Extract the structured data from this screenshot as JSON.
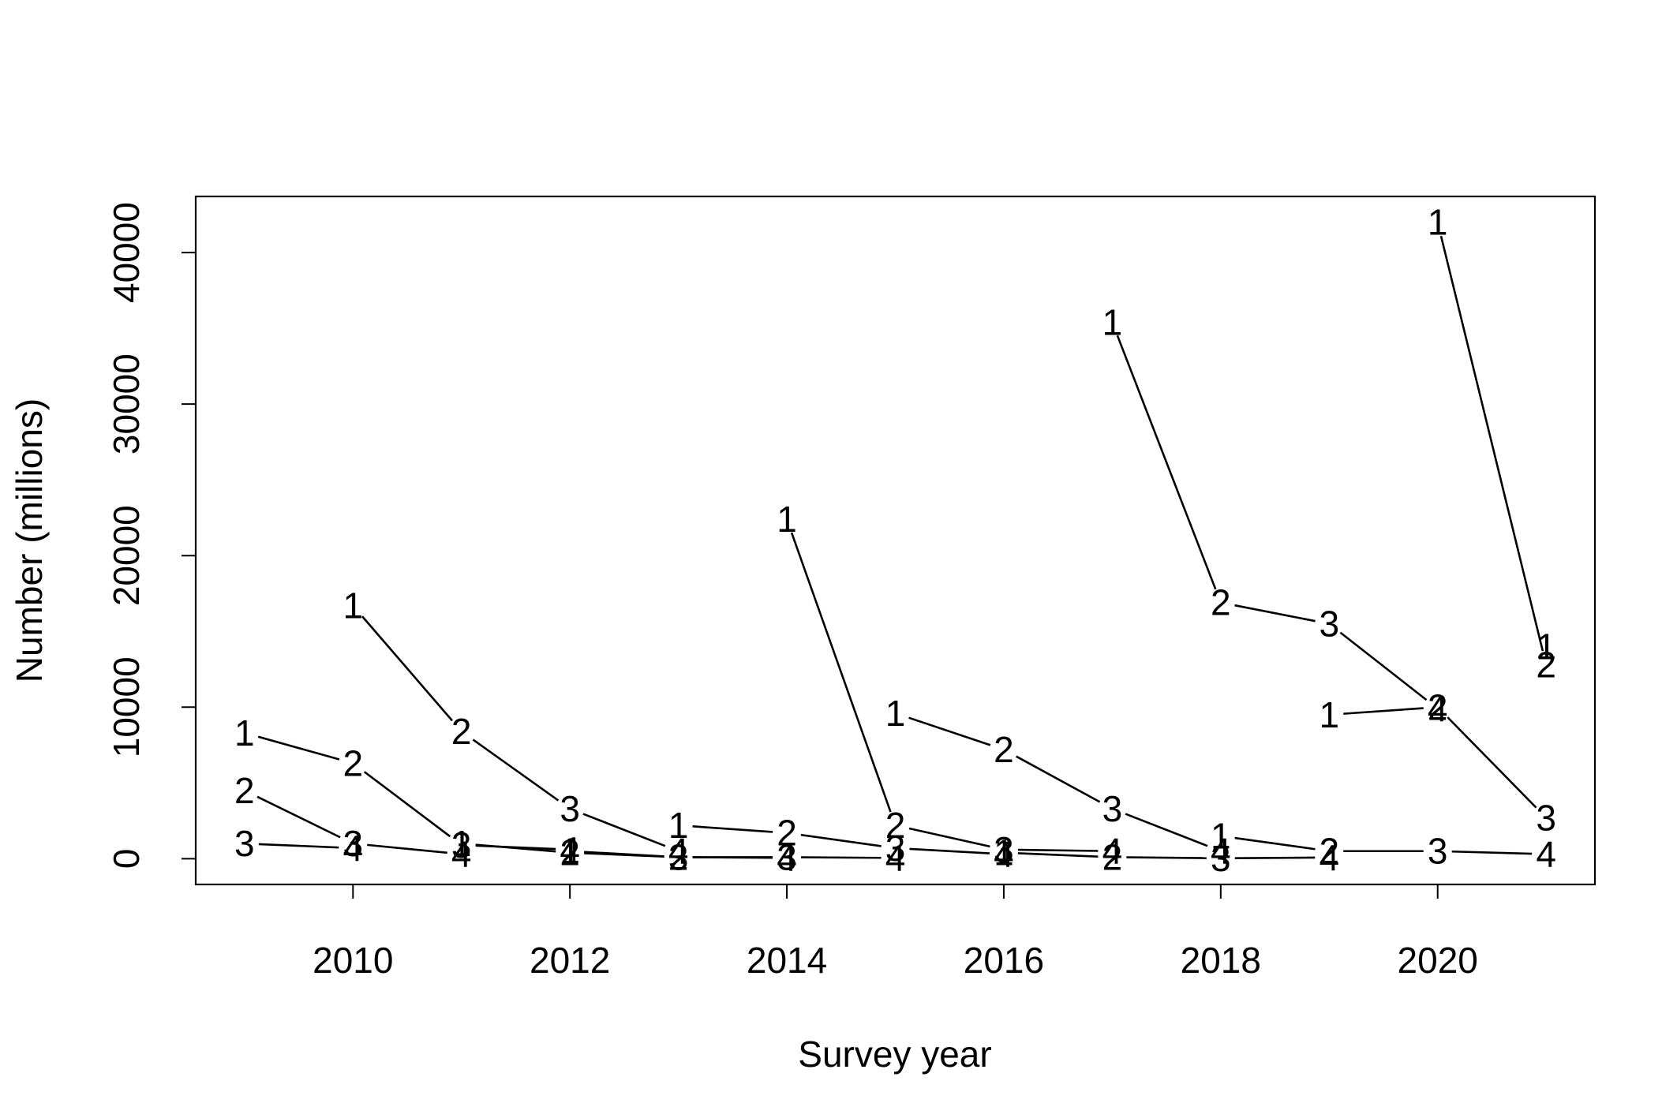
{
  "chart_data": {
    "type": "line",
    "xlabel": "Survey year",
    "ylabel": "Number (millions)",
    "xlim": [
      2008.55,
      2021.45
    ],
    "ylim": [
      -1700,
      43700
    ],
    "x_ticks": [
      2010,
      2012,
      2014,
      2016,
      2018,
      2020
    ],
    "y_ticks": [
      0,
      10000,
      20000,
      30000,
      40000
    ],
    "point_labels_are_ages": true,
    "series": [
      {
        "points": [
          [
            2009,
            8300,
            "1"
          ],
          [
            2010,
            6300,
            "2"
          ],
          [
            2011,
            900,
            "3"
          ],
          [
            2012,
            600,
            "4"
          ]
        ]
      },
      {
        "points": [
          [
            2009,
            4500,
            "2"
          ],
          [
            2010,
            1000,
            "3"
          ],
          [
            2011,
            300,
            "4"
          ]
        ]
      },
      {
        "points": [
          [
            2009,
            1000,
            "3"
          ],
          [
            2010,
            700,
            "4"
          ]
        ]
      },
      {
        "points": [
          [
            2010,
            16700,
            "1"
          ],
          [
            2011,
            8400,
            "2"
          ],
          [
            2012,
            3300,
            "3"
          ],
          [
            2013,
            500,
            "4"
          ]
        ]
      },
      {
        "points": [
          [
            2011,
            1000,
            "1"
          ],
          [
            2012,
            400,
            "2"
          ],
          [
            2013,
            100,
            "3"
          ],
          [
            2014,
            50,
            "4"
          ]
        ]
      },
      {
        "points": [
          [
            2012,
            500,
            "1"
          ],
          [
            2013,
            100,
            "2"
          ],
          [
            2014,
            100,
            "3"
          ],
          [
            2015,
            50,
            "4"
          ]
        ]
      },
      {
        "points": [
          [
            2013,
            2200,
            "1"
          ],
          [
            2014,
            1700,
            "2"
          ],
          [
            2015,
            700,
            "3"
          ],
          [
            2016,
            300,
            "4"
          ]
        ]
      },
      {
        "points": [
          [
            2014,
            22400,
            "1"
          ],
          [
            2015,
            2200,
            "2"
          ],
          [
            2016,
            600,
            "3"
          ],
          [
            2017,
            500,
            "4"
          ]
        ]
      },
      {
        "points": [
          [
            2015,
            9600,
            "1"
          ],
          [
            2016,
            7200,
            "2"
          ],
          [
            2017,
            3300,
            "3"
          ],
          [
            2018,
            500,
            "4"
          ]
        ]
      },
      {
        "points": [
          [
            2016,
            400,
            "1"
          ],
          [
            2017,
            100,
            "2"
          ],
          [
            2018,
            30,
            "3"
          ],
          [
            2019,
            80,
            "4"
          ]
        ]
      },
      {
        "points": [
          [
            2017,
            35400,
            "1"
          ],
          [
            2018,
            16900,
            "2"
          ],
          [
            2019,
            15500,
            "3"
          ],
          [
            2020,
            9900,
            "4"
          ]
        ]
      },
      {
        "points": [
          [
            2018,
            1500,
            "1"
          ],
          [
            2019,
            500,
            "2"
          ],
          [
            2020,
            500,
            "3"
          ],
          [
            2021,
            300,
            "4"
          ]
        ]
      },
      {
        "points": [
          [
            2019,
            9500,
            "1"
          ],
          [
            2020,
            10000,
            "2"
          ],
          [
            2021,
            2700,
            "3"
          ]
        ]
      },
      {
        "points": [
          [
            2020,
            42000,
            "1"
          ],
          [
            2021,
            12800,
            "2"
          ]
        ]
      },
      {
        "points": [
          [
            2021,
            14000,
            "1"
          ]
        ]
      }
    ]
  }
}
